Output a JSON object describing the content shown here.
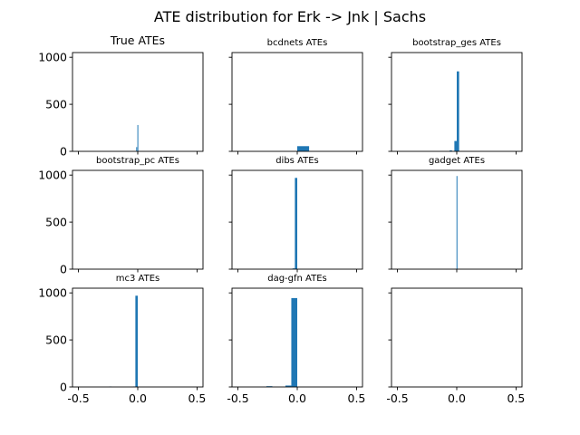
{
  "figure": {
    "title": "ATE distribution for Erk -> Jnk | Sachs",
    "bar_color": "#1f77b4"
  },
  "chart_data": [
    {
      "type": "bar",
      "title": "True ATEs",
      "xlim": [
        -0.55,
        0.55
      ],
      "ylim": [
        0,
        1050
      ],
      "yticks": [
        "0",
        "500",
        "1000"
      ],
      "xticks": [],
      "bars": [
        {
          "x0": -0.013,
          "x1": -0.009,
          "count": 45
        },
        {
          "x0": -0.003,
          "x1": 0.001,
          "count": 280
        }
      ]
    },
    {
      "type": "bar",
      "title": "bcdnets ATEs",
      "xlim": [
        -0.55,
        0.55
      ],
      "ylim": [
        0,
        1050
      ],
      "yticks": [],
      "xticks": [],
      "bars": [
        {
          "x0": 0.0,
          "x1": 0.1,
          "count": 55
        }
      ]
    },
    {
      "type": "bar",
      "title": "bootstrap_ges ATEs",
      "xlim": [
        -0.55,
        0.55
      ],
      "ylim": [
        0,
        1050
      ],
      "yticks": [],
      "xticks": [],
      "bars": [
        {
          "x0": -0.06,
          "x1": -0.04,
          "count": 10
        },
        {
          "x0": -0.02,
          "x1": 0.0,
          "count": 110
        },
        {
          "x0": 0.0,
          "x1": 0.02,
          "count": 850
        }
      ]
    },
    {
      "type": "bar",
      "title": "bootstrap_pc ATEs",
      "xlim": [
        -0.55,
        0.55
      ],
      "ylim": [
        0,
        1050
      ],
      "yticks": [
        "0",
        "500",
        "1000"
      ],
      "xticks": [],
      "bars": []
    },
    {
      "type": "bar",
      "title": "dibs ATEs",
      "xlim": [
        -0.55,
        0.55
      ],
      "ylim": [
        0,
        1050
      ],
      "yticks": [],
      "xticks": [],
      "bars": [
        {
          "x0": -0.04,
          "x1": -0.02,
          "count": 8
        },
        {
          "x0": -0.02,
          "x1": 0.0,
          "count": 970
        }
      ]
    },
    {
      "type": "bar",
      "title": "gadget ATEs",
      "xlim": [
        -0.55,
        0.55
      ],
      "ylim": [
        0,
        1050
      ],
      "yticks": [],
      "xticks": [],
      "bars": [
        {
          "x0": -0.002,
          "x1": 0.002,
          "count": 990
        }
      ]
    },
    {
      "type": "bar",
      "title": "mc3 ATEs",
      "xlim": [
        -0.55,
        0.55
      ],
      "ylim": [
        0,
        1050
      ],
      "yticks": [
        "0",
        "500",
        "1000"
      ],
      "xticks": [
        "-0.5",
        "0.0",
        "0.5"
      ],
      "bars": [
        {
          "x0": -0.24,
          "x1": -0.22,
          "count": 5
        },
        {
          "x0": -0.04,
          "x1": -0.02,
          "count": 5
        },
        {
          "x0": -0.02,
          "x1": 0.0,
          "count": 970
        }
      ]
    },
    {
      "type": "bar",
      "title": "dag-gfn ATEs",
      "xlim": [
        -0.55,
        0.55
      ],
      "ylim": [
        0,
        1050
      ],
      "yticks": [],
      "xticks": [
        "-0.5",
        "0.0",
        "0.5"
      ],
      "bars": [
        {
          "x0": -0.26,
          "x1": -0.21,
          "count": 8
        },
        {
          "x0": -0.1,
          "x1": -0.05,
          "count": 15
        },
        {
          "x0": -0.05,
          "x1": 0.0,
          "count": 945
        }
      ]
    },
    {
      "type": "bar",
      "title": "",
      "xlim": [
        -0.55,
        0.55
      ],
      "ylim": [
        0,
        1050
      ],
      "yticks": [],
      "xticks": [
        "-0.5",
        "0.0",
        "0.5"
      ],
      "bars": []
    }
  ]
}
